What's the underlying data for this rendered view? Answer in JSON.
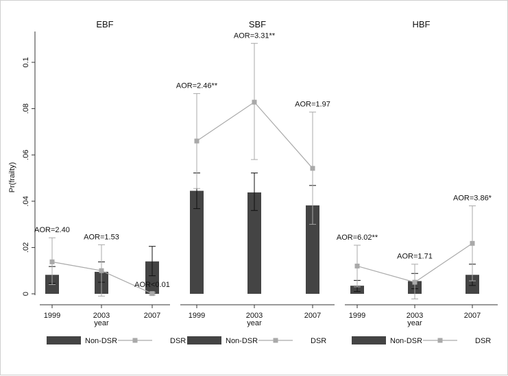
{
  "chart_data": {
    "type": "bar",
    "y_axis_label": "Pr(frailty)",
    "y_ticks": [
      0,
      0.02,
      0.04,
      0.06,
      0.08,
      0.1
    ],
    "y_tick_labels": [
      "0",
      ".02",
      ".04",
      ".06",
      ".08",
      "0.1"
    ],
    "ylim": [
      0,
      0.11
    ],
    "x_axis_label": "year",
    "categories": [
      "1999",
      "2003",
      "2007"
    ],
    "panels": [
      {
        "title": "EBF",
        "x_axis_label": "year",
        "series": [
          {
            "name": "Non-DSR",
            "type": "bar",
            "values": [
              0.0082,
              0.0095,
              0.014
            ],
            "ci_low": [
              0.0045,
              0.005,
              0.0078
            ],
            "ci_high": [
              0.0118,
              0.0138,
              0.0205
            ]
          },
          {
            "name": "DSR",
            "type": "line",
            "values": [
              0.0138,
              0.01,
              0.0001
            ],
            "ci_low": [
              0.004,
              -0.001,
              -0.0005
            ],
            "ci_high": [
              0.0242,
              0.0212,
              0.0006
            ]
          }
        ],
        "annotations": [
          "AOR=2.40",
          "AOR=1.53",
          "AOR<0.01"
        ]
      },
      {
        "title": "SBF",
        "x_axis_label": "year",
        "series": [
          {
            "name": "Non-DSR",
            "type": "bar",
            "values": [
              0.0445,
              0.0438,
              0.0382
            ],
            "ci_low": [
              0.0368,
              0.036,
              0.03
            ],
            "ci_high": [
              0.0522,
              0.0522,
              0.0468
            ]
          },
          {
            "name": "DSR",
            "type": "line",
            "values": [
              0.066,
              0.0828,
              0.0542
            ],
            "ci_low": [
              0.0455,
              0.058,
              0.03
            ],
            "ci_high": [
              0.0865,
              0.1082,
              0.0785
            ]
          }
        ],
        "annotations": [
          "AOR=2.46**",
          "AOR=3.31**",
          "AOR=1.97"
        ]
      },
      {
        "title": "HBF",
        "x_axis_label": "year",
        "series": [
          {
            "name": "Non-DSR",
            "type": "bar",
            "values": [
              0.0035,
              0.0055,
              0.0082
            ],
            "ci_low": [
              0.001,
              0.0022,
              0.0036
            ],
            "ci_high": [
              0.0058,
              0.0088,
              0.0128
            ]
          },
          {
            "name": "DSR",
            "type": "line",
            "values": [
              0.012,
              0.005,
              0.0218
            ],
            "ci_low": [
              0.003,
              -0.0022,
              0.0056
            ],
            "ci_high": [
              0.021,
              0.0128,
              0.038
            ]
          }
        ],
        "annotations": [
          "AOR=6.02**",
          "AOR=1.71",
          "AOR=3.86*"
        ]
      }
    ],
    "legend": [
      "Non-DSR",
      "DSR"
    ],
    "legend_position": "bottom"
  },
  "colors": {
    "bar": "#444444",
    "line": "#a9a9a9",
    "axis": "#333333",
    "grid": "#d9d9d9"
  }
}
